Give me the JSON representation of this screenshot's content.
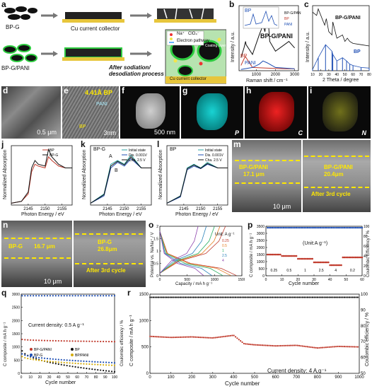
{
  "panels": {
    "a": {
      "label": "a",
      "bpg": "BP-G",
      "bpgpani": "BP-G/PANI",
      "collector": "Cu current collector",
      "process": "After sodiation/ desodiation process",
      "legend_na": "Na⁺",
      "legend_clo4": "ClO₄⁻",
      "legend_e": "Electron pathway",
      "coating": "Coating layer",
      "collector2": "Cu current collector"
    },
    "b": {
      "label": "b",
      "title": "BP-G/PANI",
      "inset_label": "BP",
      "peaks": [
        "A¹g",
        "B²g",
        "A²g"
      ],
      "xlabel": "Raman shift / cm⁻¹",
      "ylabel": "Intensity / a.u.",
      "bp": "BP",
      "pani": "PANI"
    },
    "c": {
      "label": "c",
      "top": "BP-G/PANI",
      "bottom": "BP",
      "xlabel": "2 Theta / degree",
      "ylabel": "Intensity / a.u."
    },
    "d": {
      "label": "d",
      "scale": "0.5 μm"
    },
    "e": {
      "label": "e",
      "annot": "4.41Å BP",
      "annot2": "PANI",
      "annot3": "BP",
      "scale": "3nm"
    },
    "f": {
      "label": "f",
      "scale": "500 nm"
    },
    "g": {
      "label": "g",
      "elem": "P"
    },
    "h": {
      "label": "h",
      "elem": "C"
    },
    "i": {
      "label": "i",
      "elem": "N"
    },
    "j": {
      "label": "j",
      "series": [
        "BP",
        "BP-G"
      ],
      "xlabel": "Photon Energy / eV",
      "ylabel": "Normalized Absorption"
    },
    "k": {
      "label": "k",
      "title": "BP-G",
      "series": [
        "Initial state",
        "Dis. 0.001V",
        "Cha. 2.5 V"
      ],
      "peakA": "A",
      "peakB": "B",
      "xlabel": "Photon Energy / eV",
      "ylabel": "Normalized Absorption"
    },
    "l": {
      "label": "l",
      "title": "BP",
      "series": [
        "Initial state",
        "Dis. 0.001V",
        "Cha. 2.5 V"
      ],
      "xlabel": "Photon Energy / eV",
      "ylabel": "Normalized Absorption"
    },
    "m": {
      "label": "m",
      "t1": "BP-G/PANI",
      "v1": "17.1 μm",
      "t2": "BP-G/PANI",
      "v2": "20.4μm",
      "after": "After 3rd cycle",
      "scale": "10 μm"
    },
    "n": {
      "label": "n",
      "t1": "BP-G",
      "v1": "16.7 μm",
      "t2": "BP-G",
      "v2": "26.8μm",
      "after": "After 3rd cycle",
      "scale": "10 μm"
    },
    "o": {
      "label": "o",
      "unit_title": "Unit: A g⁻¹",
      "rates": [
        "0.25",
        "0.5",
        "1",
        "2.5",
        "4"
      ],
      "xlabel": "Capacity / mA h g⁻¹",
      "ylabel": "Potential vs. Na/Na⁺ / V"
    },
    "p": {
      "label": "p",
      "unit": "(Unit:A g⁻¹)",
      "rates": [
        "0.25",
        "0.5",
        "1",
        "2.5",
        "4",
        "0.2"
      ],
      "xlabel": "Cycle number",
      "ylabel": "C composite / mA h g⁻¹",
      "y2label": "Coulombic Efficiency / %"
    },
    "q": {
      "label": "q",
      "note": "Current density: 0.5 A g⁻¹",
      "legend": [
        "BP-G/PANI",
        "BP",
        "BP-G",
        "BP/PANI"
      ],
      "xlabel": "Cycle number",
      "ylabel": "C composite / mA h g⁻¹",
      "y2label": "Coulombic efficiency / %"
    },
    "r": {
      "label": "r",
      "note": "Current density: 4 A g⁻¹",
      "xlabel": "Cycle number",
      "ylabel": "C composite / mA h g⁻¹",
      "y2label": "Coulombic efficiency / %"
    }
  },
  "chart_data": [
    {
      "type": "line",
      "panel": "b",
      "xlabel": "Raman shift / cm⁻¹",
      "ylabel": "Intensity / a.u.",
      "xlim": [
        100,
        3200
      ],
      "xticks": [
        1000,
        2000,
        3000
      ],
      "series": [
        {
          "name": "BP-G/PANI",
          "x": [
            200,
            360,
            440,
            470,
            800,
            1150,
            1350,
            1450,
            1580,
            1700,
            2000,
            2700,
            3000
          ],
          "y": [
            0.2,
            0.35,
            0.45,
            0.4,
            0.25,
            0.55,
            0.7,
            0.6,
            0.95,
            0.45,
            0.3,
            0.45,
            0.35
          ]
        },
        {
          "name": "BP",
          "x": [
            200,
            360,
            440,
            470,
            800,
            1500,
            2500,
            3000
          ],
          "y": [
            0.08,
            0.18,
            0.22,
            0.2,
            0.05,
            0.04,
            0.03,
            0.03
          ]
        },
        {
          "name": "PANI",
          "x": [
            200,
            800,
            1150,
            1350,
            1580,
            2000,
            3000
          ],
          "y": [
            0.02,
            0.05,
            0.1,
            0.15,
            0.12,
            0.05,
            0.03
          ]
        }
      ]
    },
    {
      "type": "line",
      "panel": "c",
      "xlabel": "2 Theta / degree",
      "ylabel": "Intensity / a.u.",
      "xlim": [
        10,
        80
      ],
      "xticks": [
        10,
        20,
        30,
        40,
        50,
        60,
        70,
        80
      ],
      "series": [
        {
          "name": "BP-G/PANI",
          "x": [
            10,
            15,
            17,
            25,
            27,
            30,
            34,
            35,
            40,
            47,
            50,
            53,
            56,
            60,
            70,
            80
          ],
          "y": [
            0.9,
            0.85,
            0.95,
            0.7,
            0.8,
            0.6,
            0.55,
            0.75,
            0.5,
            0.55,
            0.45,
            0.5,
            0.45,
            0.42,
            0.4,
            0.38
          ]
        },
        {
          "name": "BP",
          "x": [
            10,
            17,
            26,
            34,
            35,
            40,
            47,
            52,
            56,
            60,
            70,
            80
          ],
          "y": [
            0.02,
            0.2,
            0.4,
            0.3,
            0.25,
            0.15,
            0.2,
            0.15,
            0.1,
            0.08,
            0.05,
            0.04
          ]
        }
      ]
    },
    {
      "type": "line",
      "panel": "j",
      "xlabel": "Photon Energy / eV",
      "ylabel": "Normalized Absorption",
      "xlim": [
        2140,
        2158
      ],
      "xticks": [
        2145,
        2150,
        2155
      ],
      "series": [
        {
          "name": "BP",
          "x": [
            2140,
            2143,
            2145,
            2146,
            2147,
            2148,
            2150,
            2151,
            2152,
            2154,
            2156,
            2158
          ],
          "y": [
            0.05,
            0.1,
            0.3,
            0.9,
            1.1,
            1.05,
            1.0,
            1.3,
            1.2,
            1.05,
            1.0,
            1.0
          ]
        },
        {
          "name": "BP-G",
          "x": [
            2140,
            2143,
            2145,
            2146,
            2147,
            2148,
            2150,
            2151,
            2152,
            2154,
            2156,
            2158
          ],
          "y": [
            0.05,
            0.1,
            0.35,
            1.0,
            1.2,
            1.1,
            1.05,
            1.5,
            1.3,
            1.1,
            1.0,
            1.0
          ]
        }
      ]
    },
    {
      "type": "line",
      "panel": "k",
      "xlabel": "Photon Energy / eV",
      "ylabel": "Normalized Absorption",
      "xlim": [
        2140,
        2158
      ],
      "xticks": [
        2145,
        2150,
        2155
      ],
      "series": [
        {
          "name": "Initial state",
          "x": [
            2140,
            2144,
            2146,
            2148,
            2150,
            2152,
            2155,
            2158
          ],
          "y": [
            0.05,
            0.3,
            1.1,
            1.2,
            1.1,
            1.35,
            1.0,
            1.0
          ]
        },
        {
          "name": "Dis. 0.001V",
          "x": [
            2140,
            2144,
            2146,
            2148,
            2150,
            2152,
            2155,
            2158
          ],
          "y": [
            0.05,
            0.25,
            1.0,
            1.15,
            1.05,
            1.25,
            1.0,
            1.0
          ]
        },
        {
          "name": "Cha. 2.5 V",
          "x": [
            2140,
            2144,
            2146,
            2148,
            2150,
            2152,
            2155,
            2158
          ],
          "y": [
            0.05,
            0.28,
            1.05,
            1.18,
            1.08,
            1.3,
            1.0,
            1.0
          ]
        }
      ]
    },
    {
      "type": "line",
      "panel": "l",
      "xlabel": "Photon Energy / eV",
      "ylabel": "Normalized Absorption",
      "xlim": [
        2140,
        2158
      ],
      "xticks": [
        2145,
        2150,
        2155
      ],
      "series": [
        {
          "name": "Initial state",
          "x": [
            2140,
            2144,
            2146,
            2148,
            2150,
            2152,
            2155,
            2158
          ],
          "y": [
            0.05,
            0.25,
            1.0,
            1.1,
            1.0,
            1.15,
            1.0,
            1.0
          ]
        },
        {
          "name": "Dis. 0.001V",
          "x": [
            2140,
            2144,
            2146,
            2148,
            2150,
            2152,
            2155,
            2158
          ],
          "y": [
            0.05,
            0.22,
            0.95,
            1.05,
            0.98,
            1.1,
            1.0,
            1.0
          ]
        },
        {
          "name": "Cha. 2.5 V",
          "x": [
            2140,
            2144,
            2146,
            2148,
            2150,
            2152,
            2155,
            2158
          ],
          "y": [
            0.05,
            0.24,
            0.98,
            1.08,
            0.99,
            1.12,
            1.0,
            1.0
          ]
        }
      ]
    },
    {
      "type": "line",
      "panel": "o",
      "xlabel": "Capacity / mA h g⁻¹",
      "ylabel": "Potential vs. Na/Na⁺ / V",
      "xlim": [
        0,
        1500
      ],
      "ylim": [
        0,
        2.0
      ],
      "xticks": [
        0,
        500,
        1000,
        1500
      ],
      "yticks": [
        0,
        0.5,
        1.0,
        1.5,
        2.0
      ],
      "series": [
        {
          "name": "0.25",
          "discharge_end": 1400,
          "charge_end": 1200
        },
        {
          "name": "0.5",
          "discharge_end": 1300,
          "charge_end": 1100
        },
        {
          "name": "1",
          "discharge_end": 1150,
          "charge_end": 1000
        },
        {
          "name": "2.5",
          "discharge_end": 950,
          "charge_end": 850
        },
        {
          "name": "4",
          "discharge_end": 800,
          "charge_end": 700
        }
      ]
    },
    {
      "type": "scatter",
      "panel": "p",
      "xlabel": "Cycle number",
      "ylabel": "C composite / mA h g⁻¹",
      "y2label": "Coulombic Efficiency / %",
      "xlim": [
        0,
        60
      ],
      "ylim": [
        0,
        3500
      ],
      "y2lim": [
        0,
        100
      ],
      "xticks": [
        0,
        10,
        20,
        30,
        40,
        50,
        60
      ],
      "yticks": [
        0,
        500,
        1000,
        1500,
        2000,
        2500,
        3000,
        3500
      ],
      "capacity_segments": [
        {
          "rate": "0.25",
          "start": 1,
          "end": 9,
          "value": 1500
        },
        {
          "rate": "0.5",
          "start": 10,
          "end": 19,
          "value": 1400
        },
        {
          "rate": "1",
          "start": 20,
          "end": 29,
          "value": 1200
        },
        {
          "rate": "2.5",
          "start": 30,
          "end": 39,
          "value": 950
        },
        {
          "rate": "4",
          "start": 40,
          "end": 47,
          "value": 750
        },
        {
          "rate": "0.2",
          "start": 48,
          "end": 60,
          "value": 1300
        }
      ],
      "efficiency": 97
    },
    {
      "type": "scatter",
      "panel": "q",
      "xlabel": "Cycle number",
      "ylabel": "C composite / mA h g⁻¹",
      "y2label": "Coulombic efficiency / %",
      "xlim": [
        0,
        100
      ],
      "ylim": [
        0,
        3000
      ],
      "y2lim": [
        0,
        100
      ],
      "xticks": [
        0,
        10,
        20,
        30,
        40,
        50,
        60,
        70,
        80,
        90,
        100
      ],
      "yticks": [
        0,
        500,
        1000,
        1500,
        2000,
        2500,
        3000
      ],
      "series": [
        {
          "name": "BP-G/PANI",
          "start": 1300,
          "end": 1200
        },
        {
          "name": "BP",
          "start": 1000,
          "end": 60
        },
        {
          "name": "BP-G",
          "start": 800,
          "end": 400
        },
        {
          "name": "BP/PANI",
          "start": 700,
          "end": 300
        }
      ],
      "efficiency": 98
    },
    {
      "type": "scatter",
      "panel": "r",
      "xlabel": "Cycle number",
      "ylabel": "C composite / mA h g⁻¹",
      "y2label": "Coulombic efficiency / %",
      "xlim": [
        0,
        1000
      ],
      "ylim": [
        0,
        1500
      ],
      "y2lim": [
        50,
        100
      ],
      "xticks": [
        0,
        100,
        200,
        300,
        400,
        500,
        600,
        700,
        800,
        900,
        1000
      ],
      "yticks": [
        0,
        500,
        1000,
        1500
      ],
      "y2ticks": [
        50,
        60,
        70,
        80,
        90,
        100
      ],
      "capacity": {
        "x": [
          0,
          100,
          200,
          300,
          400,
          450,
          500,
          600,
          700,
          800,
          900,
          1000
        ],
        "y": [
          700,
          680,
          690,
          670,
          720,
          560,
          540,
          520,
          530,
          480,
          510,
          500
        ]
      },
      "efficiency": 98
    }
  ],
  "colors": {
    "bp": "#c0392b",
    "bpg": "#222222",
    "pani": "#1f4fb4",
    "yellow": "#ffe800",
    "green": "#2ecc40"
  }
}
